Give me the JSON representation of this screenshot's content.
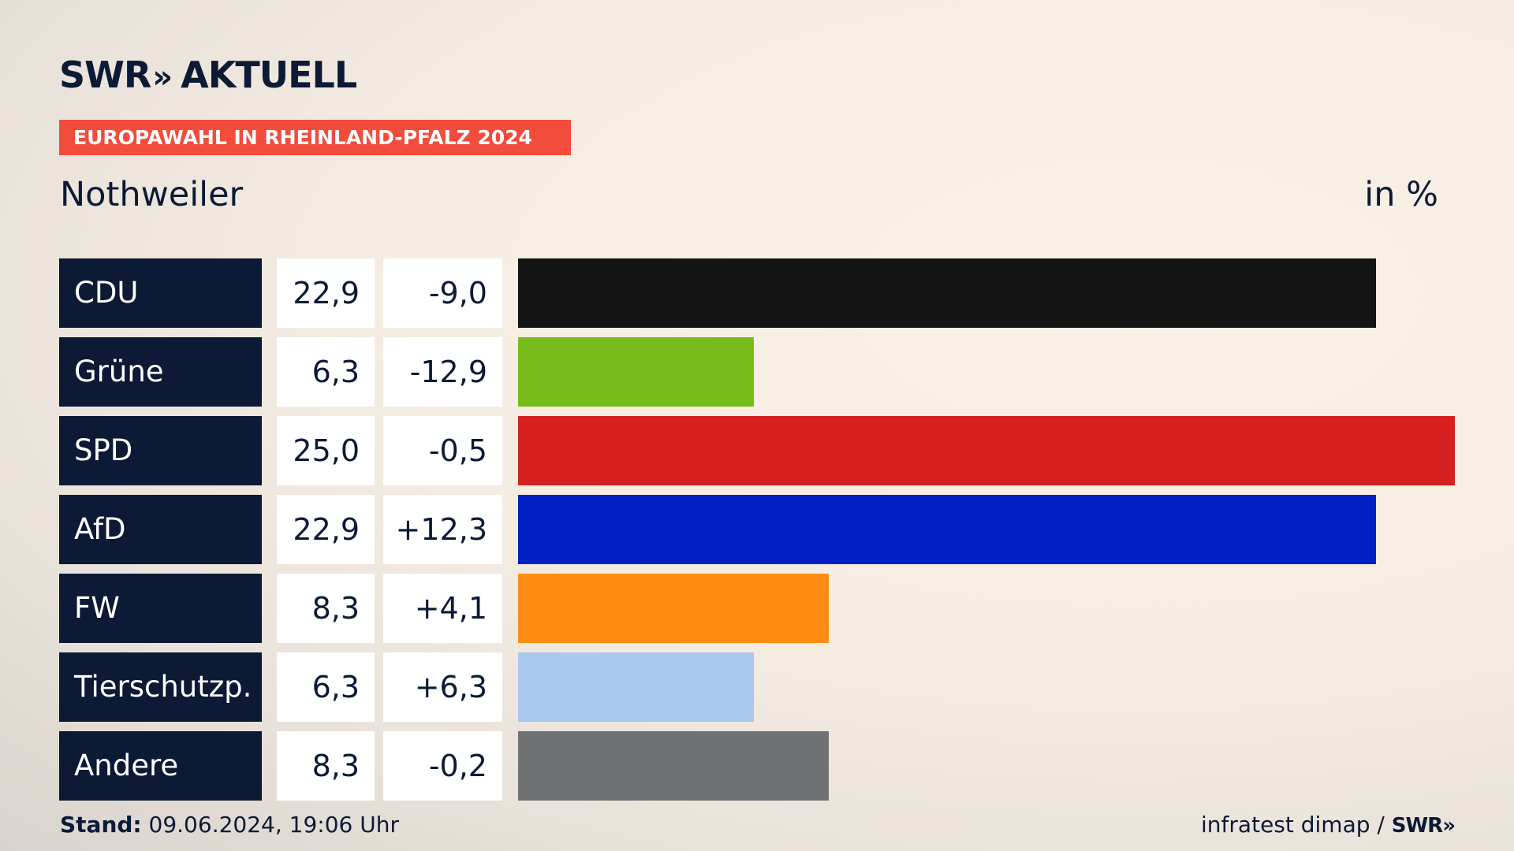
{
  "header": {
    "brand": "SWR",
    "brand_chevrons": "»",
    "brand_suffix": "AKTUELL",
    "banner": "EUROPAWAHL IN RHEINLAND-PFALZ 2024",
    "place": "Nothweiler",
    "unit": "in %"
  },
  "chart_data": {
    "type": "bar",
    "categories": [
      "CDU",
      "Grüne",
      "SPD",
      "AfD",
      "FW",
      "Tierschutzp.",
      "Andere"
    ],
    "values": [
      22.9,
      6.3,
      25.0,
      22.9,
      8.3,
      6.3,
      8.3
    ],
    "values_label": [
      "22,9",
      "6,3",
      "25,0",
      "22,9",
      "8,3",
      "6,3",
      "8,3"
    ],
    "diff_label": [
      "-9,0",
      "-12,9",
      "-0,5",
      "+12,3",
      "+4,1",
      "+6,3",
      "-0,2"
    ],
    "colors": [
      "#141414",
      "#78bc1b",
      "#d61f1f",
      "#0020c5",
      "#ff8c13",
      "#aac8ee",
      "#707173"
    ],
    "xlim": [
      0,
      25.0
    ]
  },
  "footer": {
    "stand_label": "Stand:",
    "stand_value": "09.06.2024, 19:06 Uhr",
    "source": "infratest dimap /",
    "source_brand": "SWR»"
  }
}
